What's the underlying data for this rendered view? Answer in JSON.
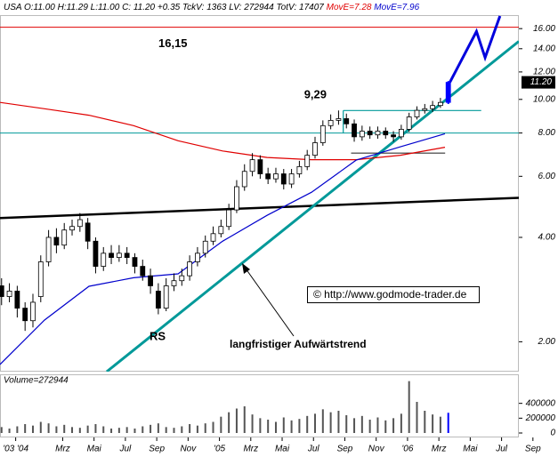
{
  "chart_data": {
    "type": "candlestick",
    "header": {
      "symbol": "USA",
      "stats": "O:11.00 H:11.29 L:11.00 C: 11.20 +0.35 TckV: 1363 LV: 272944 TotV: 17407"
    },
    "color": "#000000",
    "last_color": "#0000ff",
    "x": [
      -1.9,
      -1.4,
      -0.9,
      -0.4,
      0.1,
      0.6,
      1.1,
      1.6,
      2.1,
      2.6,
      3.1,
      3.6,
      4.1,
      4.6,
      5.1,
      5.6,
      6.1,
      6.6,
      7.1,
      7.6,
      8.1,
      8.6,
      9.1,
      9.6,
      10.1,
      10.6,
      11.1,
      11.6,
      12.1,
      12.6,
      13.1,
      13.6,
      14.1,
      14.6,
      15.1,
      15.6,
      16.1,
      16.6,
      17.1,
      17.6,
      18.1,
      18.6,
      19.1,
      19.6,
      20.1,
      20.6,
      21.1,
      21.6,
      22.1,
      22.6,
      23.1,
      23.6,
      24.1,
      24.6,
      25.1,
      25.6,
      26.1,
      26.6
    ],
    "open": [
      2.9,
      2.7,
      2.8,
      2.5,
      2.3,
      2.7,
      3.4,
      4.0,
      3.8,
      4.2,
      4.3,
      4.4,
      3.9,
      3.3,
      3.6,
      3.5,
      3.6,
      3.5,
      3.3,
      3.1,
      2.8,
      2.5,
      2.9,
      3.0,
      3.1,
      3.4,
      3.6,
      3.9,
      4.1,
      4.3,
      4.8,
      5.6,
      6.2,
      6.7,
      6.1,
      5.9,
      6.1,
      5.7,
      6.1,
      6.4,
      6.9,
      7.5,
      8.4,
      8.7,
      8.8,
      8.5,
      7.8,
      8.1,
      7.9,
      8.1,
      7.9,
      7.8,
      8.2,
      8.9,
      9.3,
      9.4,
      9.6,
      9.8
    ],
    "high": [
      3.05,
      2.95,
      2.9,
      2.6,
      2.75,
      3.55,
      4.2,
      4.25,
      4.4,
      4.5,
      4.7,
      4.55,
      4.0,
      3.75,
      3.8,
      3.8,
      3.75,
      3.6,
      3.45,
      3.25,
      2.95,
      3.05,
      3.15,
      3.25,
      3.55,
      3.75,
      4.05,
      4.3,
      4.5,
      5.0,
      5.85,
      6.5,
      7.0,
      6.9,
      6.35,
      6.35,
      6.3,
      6.3,
      6.65,
      7.15,
      7.8,
      8.7,
      9.05,
      9.29,
      9.1,
      8.75,
      8.4,
      8.35,
      8.35,
      8.3,
      8.1,
      8.45,
      9.15,
      9.55,
      9.7,
      9.9,
      10.1,
      11.29
    ],
    "low": [
      2.55,
      2.6,
      2.35,
      2.15,
      2.2,
      2.6,
      3.3,
      3.6,
      3.7,
      4.05,
      4.15,
      3.7,
      3.15,
      3.2,
      3.35,
      3.4,
      3.35,
      3.15,
      3.0,
      2.75,
      2.4,
      2.45,
      2.8,
      2.9,
      3.0,
      3.3,
      3.5,
      3.8,
      4.0,
      4.2,
      4.7,
      5.45,
      6.0,
      5.9,
      5.7,
      5.75,
      5.5,
      5.55,
      5.95,
      6.25,
      6.75,
      7.35,
      8.2,
      8.45,
      8.25,
      7.55,
      7.6,
      7.7,
      7.7,
      7.7,
      7.55,
      7.65,
      8.05,
      8.75,
      9.1,
      9.2,
      9.45,
      9.7
    ],
    "close": [
      2.7,
      2.8,
      2.5,
      2.3,
      2.6,
      3.4,
      4.0,
      3.8,
      4.2,
      4.3,
      4.5,
      3.9,
      3.3,
      3.6,
      3.5,
      3.6,
      3.5,
      3.3,
      3.1,
      2.9,
      2.5,
      2.9,
      3.0,
      3.1,
      3.4,
      3.6,
      3.9,
      4.1,
      4.3,
      4.8,
      5.6,
      6.2,
      6.7,
      6.1,
      5.9,
      6.1,
      5.7,
      6.1,
      6.4,
      6.9,
      7.5,
      8.4,
      8.7,
      8.8,
      8.5,
      7.8,
      8.1,
      7.9,
      8.1,
      7.9,
      7.8,
      8.2,
      8.9,
      9.3,
      9.4,
      9.6,
      9.8,
      11.2
    ],
    "xlim": [
      -2,
      33.6
    ],
    "xticks": [
      {
        "value": -1,
        "label": "'03 '04"
      },
      {
        "value": 2,
        "label": "Mrz"
      },
      {
        "value": 4,
        "label": "Mai"
      },
      {
        "value": 6,
        "label": "Jul"
      },
      {
        "value": 8,
        "label": "Sep"
      },
      {
        "value": 10,
        "label": "Nov"
      },
      {
        "value": 12,
        "label": "'05"
      },
      {
        "value": 14,
        "label": "Mrz"
      },
      {
        "value": 16,
        "label": "Mai"
      },
      {
        "value": 18,
        "label": "Jul"
      },
      {
        "value": 20,
        "label": "Sep"
      },
      {
        "value": 22,
        "label": "Nov"
      },
      {
        "value": 24,
        "label": "'06"
      },
      {
        "value": 26,
        "label": "Mrz"
      },
      {
        "value": 28,
        "label": "Mai"
      },
      {
        "value": 30,
        "label": "Jul"
      },
      {
        "value": 32,
        "label": "Sep"
      }
    ],
    "ylim": [
      1.64,
      17.5
    ],
    "log_y": true,
    "yticks": [
      {
        "value": 16,
        "label": "16.00"
      },
      {
        "value": 14,
        "label": "14.00"
      },
      {
        "value": 12,
        "label": "12.00"
      },
      {
        "value": 10,
        "label": "10.00"
      },
      {
        "value": 8,
        "label": "8.00"
      },
      {
        "value": 6,
        "label": "6.00"
      },
      {
        "value": 4,
        "label": "4.00"
      },
      {
        "value": 2,
        "label": "2.00"
      }
    ],
    "last_price": {
      "value": 11.2,
      "label": "11.20"
    },
    "series": [
      {
        "name": "MovE=7.28",
        "color": "#e00000",
        "x": [
          -2,
          0.84,
          3.68,
          6.52,
          9.36,
          12.2,
          15.04,
          17.88,
          20.72,
          23.55,
          26.39
        ],
        "values": [
          9.8,
          9.4,
          9.0,
          8.4,
          7.6,
          7.1,
          6.8,
          6.7,
          6.7,
          6.9,
          7.28
        ]
      },
      {
        "name": "MovE=7.96",
        "color": "#0000cc",
        "x": [
          -2,
          0.84,
          3.68,
          6.52,
          9.36,
          12.2,
          15.04,
          17.88,
          20.72,
          23.55,
          26.39
        ],
        "values": [
          1.72,
          2.31,
          2.89,
          3.06,
          3.14,
          3.9,
          4.63,
          5.4,
          6.68,
          7.3,
          7.96
        ]
      }
    ],
    "levels": [
      {
        "value": 16.15,
        "label": "16,15",
        "color": "#e00000"
      },
      {
        "value": 8.0,
        "color": "#009999"
      }
    ],
    "lines": [
      {
        "color": "#000000",
        "width": 2.5,
        "x": [
          -2,
          31.1
        ],
        "values": [
          4.55,
          5.2
        ]
      },
      {
        "color": "#009999",
        "width": 3,
        "x": [
          4.81,
          31.1
        ],
        "values": [
          1.64,
          14.7
        ]
      },
      {
        "color": "#0000dd",
        "width": 3,
        "x": [
          26.7,
          28.4,
          28.95,
          29.9
        ],
        "values": [
          11.2,
          15.7,
          13.2,
          17.4
        ]
      },
      {
        "color": "#009999",
        "width": 1.2,
        "x": [
          19.9,
          28.7
        ],
        "values": [
          9.29,
          9.29
        ],
        "label": "9,29"
      },
      {
        "color": "#009999",
        "width": 1.2,
        "x": [
          19.9,
          19.9
        ],
        "values": [
          9.29,
          8.0
        ]
      },
      {
        "color": "#333333",
        "width": 1.2,
        "x": [
          20.4,
          26.4
        ],
        "values": [
          7.0,
          7.0
        ]
      }
    ],
    "annotations": [
      "RS",
      "langfristiger Aufwärtstrend",
      "© http://www.godmode-trader.de"
    ],
    "volume": {
      "label": "Volume=272944",
      "color": "#555555",
      "values": [
        80000,
        60000,
        90000,
        120000,
        100000,
        150000,
        130000,
        90000,
        110000,
        80000,
        70000,
        100000,
        120000,
        90000,
        60000,
        70000,
        80000,
        60000,
        90000,
        110000,
        130000,
        80000,
        70000,
        90000,
        120000,
        100000,
        130000,
        150000,
        220000,
        280000,
        330000,
        360000,
        250000,
        200000,
        180000,
        150000,
        210000,
        170000,
        190000,
        230000,
        260000,
        320000,
        280000,
        300000,
        240000,
        200000,
        230000,
        180000,
        210000,
        170000,
        200000,
        260000,
        700000,
        420000,
        300000,
        250000,
        220000,
        272944
      ],
      "ylim": [
        0,
        780000
      ],
      "yticks": [
        400000,
        200000,
        0
      ]
    }
  }
}
